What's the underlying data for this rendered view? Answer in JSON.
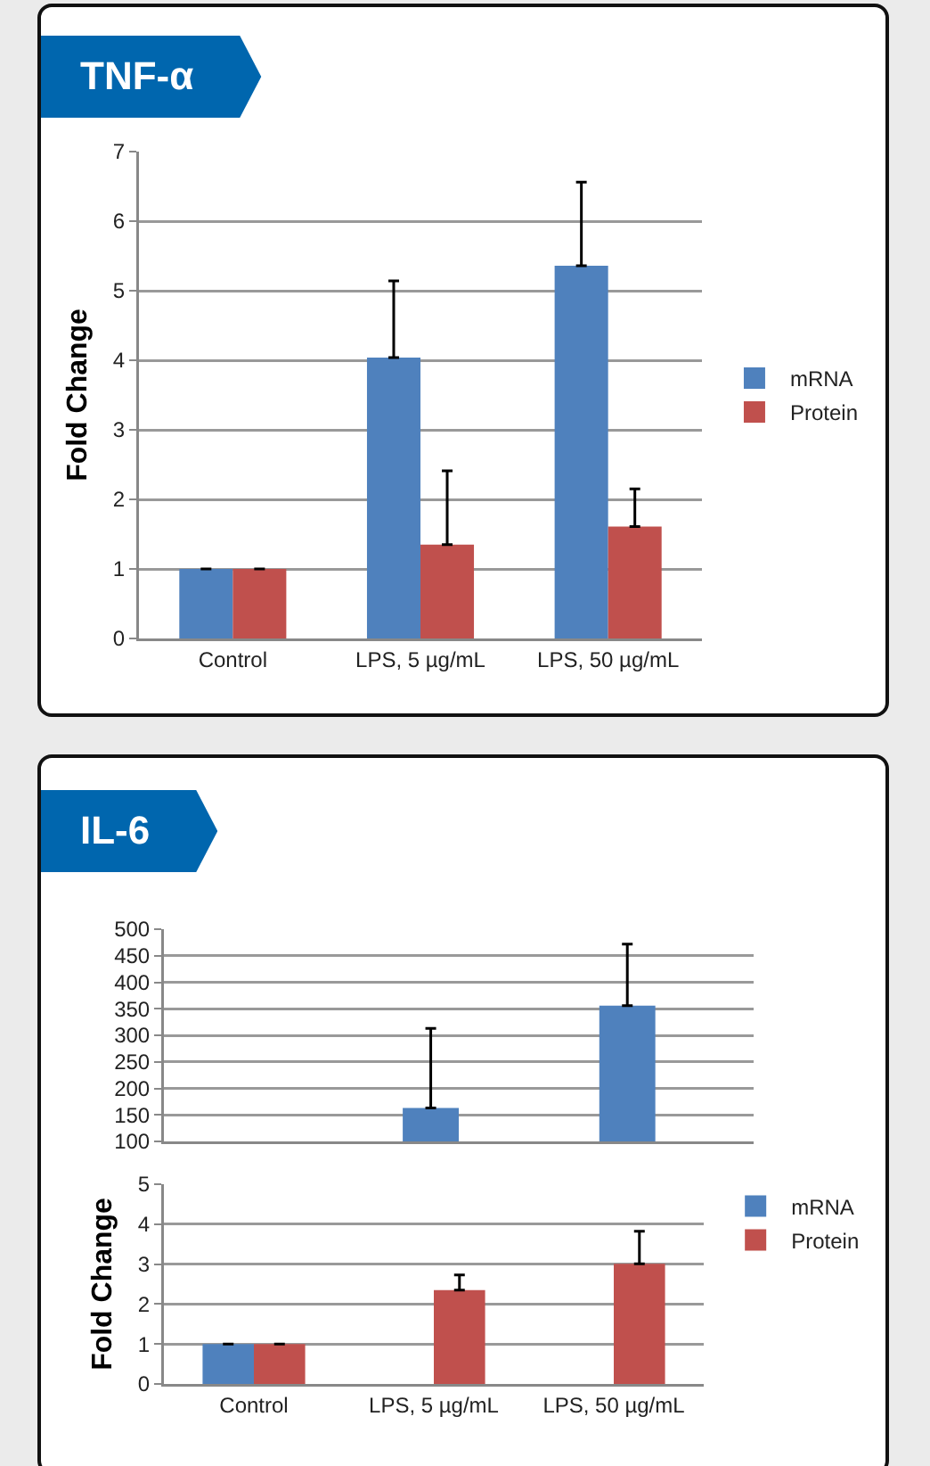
{
  "chart_data": [
    {
      "type": "bar",
      "title": "TNF-α",
      "ylabel": "Fold Change",
      "categories": [
        "Control",
        "LPS, 5 µg/mL",
        "LPS, 50 µg/mL"
      ],
      "series": [
        {
          "name": "mRNA",
          "color": "#4f81bd",
          "values": [
            1,
            4.04,
            5.36
          ],
          "errors": [
            [
              1,
              1
            ],
            [
              4.04,
              5.14
            ],
            [
              5.36,
              6.56
            ]
          ]
        },
        {
          "name": "Protein",
          "color": "#c0504d",
          "values": [
            1,
            1.35,
            1.61
          ],
          "errors": [
            [
              1,
              1
            ],
            [
              1.35,
              2.41
            ],
            [
              1.61,
              2.15
            ]
          ]
        }
      ],
      "ylim": [
        0,
        7
      ],
      "yticks": [
        0,
        1,
        2,
        3,
        4,
        5,
        6,
        7
      ],
      "grid": "y",
      "legend": "right"
    },
    {
      "type": "bar",
      "title": "IL-6",
      "categories": [
        null,
        null,
        null
      ],
      "series": [
        {
          "color": "#4f81bd",
          "values": [
            null,
            163,
            356
          ],
          "errors": [
            null,
            [
              163,
              313
            ],
            [
              356,
              472
            ]
          ]
        },
        {
          "color": "#c0504d",
          "values": [
            null,
            null,
            null
          ]
        }
      ],
      "ylim": [
        100,
        500
      ],
      "yticks": [
        100,
        150,
        200,
        250,
        300,
        350,
        400,
        450,
        500
      ],
      "grid": "y",
      "tick_labels": "y"
    },
    {
      "type": "bar",
      "ylabel": "Fold Change",
      "categories": [
        "Control",
        "LPS, 5 µg/mL",
        "LPS, 50 µg/mL"
      ],
      "series": [
        {
          "name": "mRNA",
          "color": "#4f81bd",
          "values": [
            1,
            null,
            null
          ],
          "errors": [
            [
              1,
              1
            ],
            null,
            null
          ]
        },
        {
          "name": "Protein",
          "color": "#c0504d",
          "values": [
            1,
            2.35,
            3.01
          ],
          "errors": [
            [
              1,
              1
            ],
            [
              2.35,
              2.73
            ],
            [
              3.01,
              3.82
            ]
          ]
        }
      ],
      "ylim": [
        0,
        5
      ],
      "yticks": [
        0,
        1,
        2,
        3,
        4,
        5
      ],
      "grid": "y",
      "legend": "top right"
    }
  ]
}
